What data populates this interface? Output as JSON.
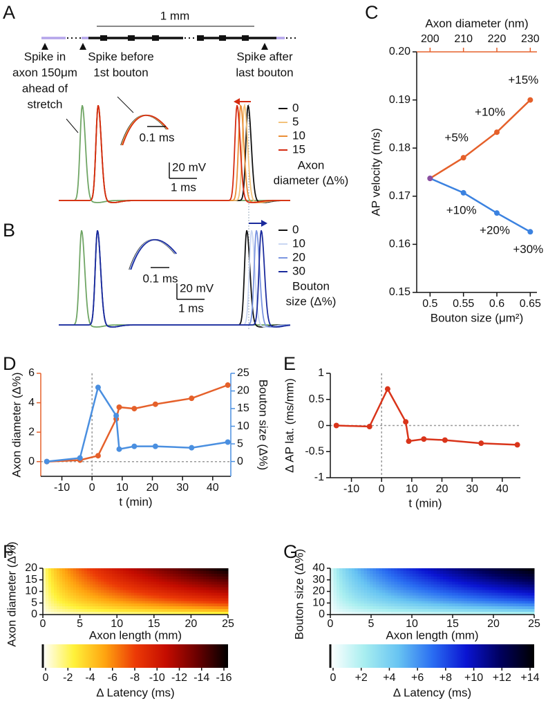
{
  "chart_data": [
    {
      "type": "traces",
      "panel_label": "A",
      "scale_label": "1 mm",
      "annotations": [
        [
          "Spike in",
          "axon 150μm",
          "ahead of",
          "stretch"
        ],
        [
          "Spike before",
          "1st bouton"
        ],
        [
          "Spike after",
          "last bouton"
        ]
      ],
      "reference_color": "#6fa564",
      "series": [
        {
          "name": "0",
          "color": "#111111"
        },
        {
          "name": "5",
          "color": "#f3c27a"
        },
        {
          "name": "10",
          "color": "#ea8d35"
        },
        {
          "name": "15",
          "color": "#d42a10"
        }
      ],
      "legend_title": [
        "Axon",
        "diameter (Δ%)"
      ],
      "voltage_scale": "20 mV",
      "time_scale": "1 ms",
      "inset_time_scale": "0.1 ms"
    },
    {
      "type": "traces",
      "panel_label": "B",
      "reference_color": "#6fa564",
      "series": [
        {
          "name": "0",
          "color": "#111111"
        },
        {
          "name": "10",
          "color": "#c9d6f2"
        },
        {
          "name": "20",
          "color": "#7b95e0"
        },
        {
          "name": "30",
          "color": "#1a2a9c"
        }
      ],
      "legend_title": [
        "Bouton",
        "size (Δ%)"
      ],
      "voltage_scale": "20 mV",
      "time_scale": "1 ms",
      "inset_time_scale": "0.1 ms"
    },
    {
      "type": "line",
      "panel_label": "C",
      "x_label": "Bouton size (μm²)",
      "x2_label": "Axon diameter (nm)",
      "y_label": "AP velocity (m/s)",
      "xlim": [
        0.48,
        0.66
      ],
      "xticks": [
        0.5,
        0.55,
        0.6,
        0.65
      ],
      "x2lim": [
        196,
        232
      ],
      "x2ticks": [
        200,
        210,
        220,
        230
      ],
      "ylim": [
        0.15,
        0.2
      ],
      "yticks": [
        0.15,
        0.16,
        0.17,
        0.18,
        0.19,
        {
          "value": 0.2,
          "label": "0.20"
        }
      ],
      "start_color": "#8a4fa0",
      "series": [
        {
          "color": "#e5602a",
          "axis": "x2",
          "x": [
            200,
            210,
            220,
            230
          ],
          "values": [
            0.1737,
            0.178,
            0.1833,
            0.19
          ],
          "annotations": [
            null,
            "+5%",
            "+10%",
            "+15%"
          ]
        },
        {
          "color": "#3b82e0",
          "x": [
            0.5,
            0.55,
            0.6,
            0.65
          ],
          "values": [
            0.1737,
            0.1707,
            0.1665,
            0.1626
          ],
          "annotations": [
            null,
            "+10%",
            "+20%",
            "+30%"
          ]
        }
      ]
    },
    {
      "type": "line",
      "panel_label": "D",
      "x_label": "t (min)",
      "y_label": "Axon diameter (Δ%)",
      "y2_label": "Bouton size (Δ%)",
      "xlim": [
        -17,
        46
      ],
      "xticks": [
        -10,
        0,
        10,
        20,
        30,
        40
      ],
      "ylim": [
        -1,
        6
      ],
      "yticks": [
        0,
        2,
        4,
        6
      ],
      "y2lim": [
        -4.2,
        25
      ],
      "y2ticks": [
        0,
        5,
        10,
        15,
        20,
        25
      ],
      "zero_lines": true,
      "series": [
        {
          "color": "#e5602a",
          "x": [
            -15,
            -4,
            2,
            8,
            9,
            14,
            21,
            33,
            45
          ],
          "values": [
            0,
            0.1,
            0.4,
            2.9,
            3.7,
            3.6,
            3.9,
            4.3,
            5.2
          ]
        },
        {
          "color": "#4a8fe0",
          "axis": "y2",
          "x": [
            -15,
            -4,
            2,
            8,
            9,
            14,
            21,
            33,
            45
          ],
          "values": [
            0,
            1,
            21,
            13,
            3.5,
            4.3,
            4.3,
            3.9,
            5.5
          ]
        }
      ]
    },
    {
      "type": "line",
      "panel_label": "E",
      "x_label": "t (min)",
      "y_label": "Δ AP lat. (ms/mm)",
      "xlim": [
        -17,
        46
      ],
      "xticks": [
        -10,
        0,
        10,
        20,
        30,
        40
      ],
      "ylim": [
        -1,
        1
      ],
      "yticks": [
        -1,
        -0.5,
        0,
        0.5,
        1
      ],
      "zero_lines": true,
      "series": [
        {
          "color": "#d9341a",
          "x": [
            -15,
            -4,
            2,
            8,
            9,
            14,
            21,
            33,
            45
          ],
          "values": [
            0,
            -0.02,
            0.7,
            0.07,
            -0.3,
            -0.26,
            -0.28,
            -0.34,
            -0.37
          ]
        }
      ]
    },
    {
      "type": "heatmap",
      "panel_label": "F",
      "x_label": "Axon length (mm)",
      "y_label": "Axon diameter (Δ%)",
      "xlim": [
        0,
        25
      ],
      "xticks": [
        0,
        5,
        10,
        15,
        20,
        25
      ],
      "ylim": [
        0,
        20
      ],
      "yticks": [
        0,
        5,
        10,
        15,
        20
      ],
      "colormap": [
        "#ffffff",
        "#fff23a",
        "#ffa510",
        "#ec3a06",
        "#c40c00",
        "#6a0000",
        "#000000"
      ],
      "colorbar_label": "Δ Latency (ms)",
      "clim": [
        0,
        -16
      ],
      "cticks": [
        0,
        -2,
        -4,
        -6,
        -8,
        -10,
        -12,
        -14,
        -16
      ]
    },
    {
      "type": "heatmap",
      "panel_label": "G",
      "x_label": "Axon length (mm)",
      "y_label": "Bouton size (Δ%)",
      "xlim": [
        0,
        25
      ],
      "xticks": [
        0,
        5,
        10,
        15,
        20,
        25
      ],
      "ylim": [
        0,
        40
      ],
      "yticks": [
        0,
        10,
        20,
        30,
        40
      ],
      "colormap": [
        "#ffffff",
        "#a8eef0",
        "#68c4f2",
        "#2a6ef2",
        "#0a14d2",
        "#00005e",
        "#000000"
      ],
      "colorbar_label": "Δ Latency (ms)",
      "clim": [
        0,
        14
      ],
      "cticks": [
        0,
        {
          "value": 2,
          "label": "+2"
        },
        {
          "value": 4,
          "label": "+4"
        },
        {
          "value": 6,
          "label": "+6"
        },
        {
          "value": 8,
          "label": "+8"
        },
        {
          "value": 10,
          "label": "+10"
        },
        {
          "value": 12,
          "label": "+12"
        },
        {
          "value": 14,
          "label": "+14"
        }
      ]
    }
  ]
}
